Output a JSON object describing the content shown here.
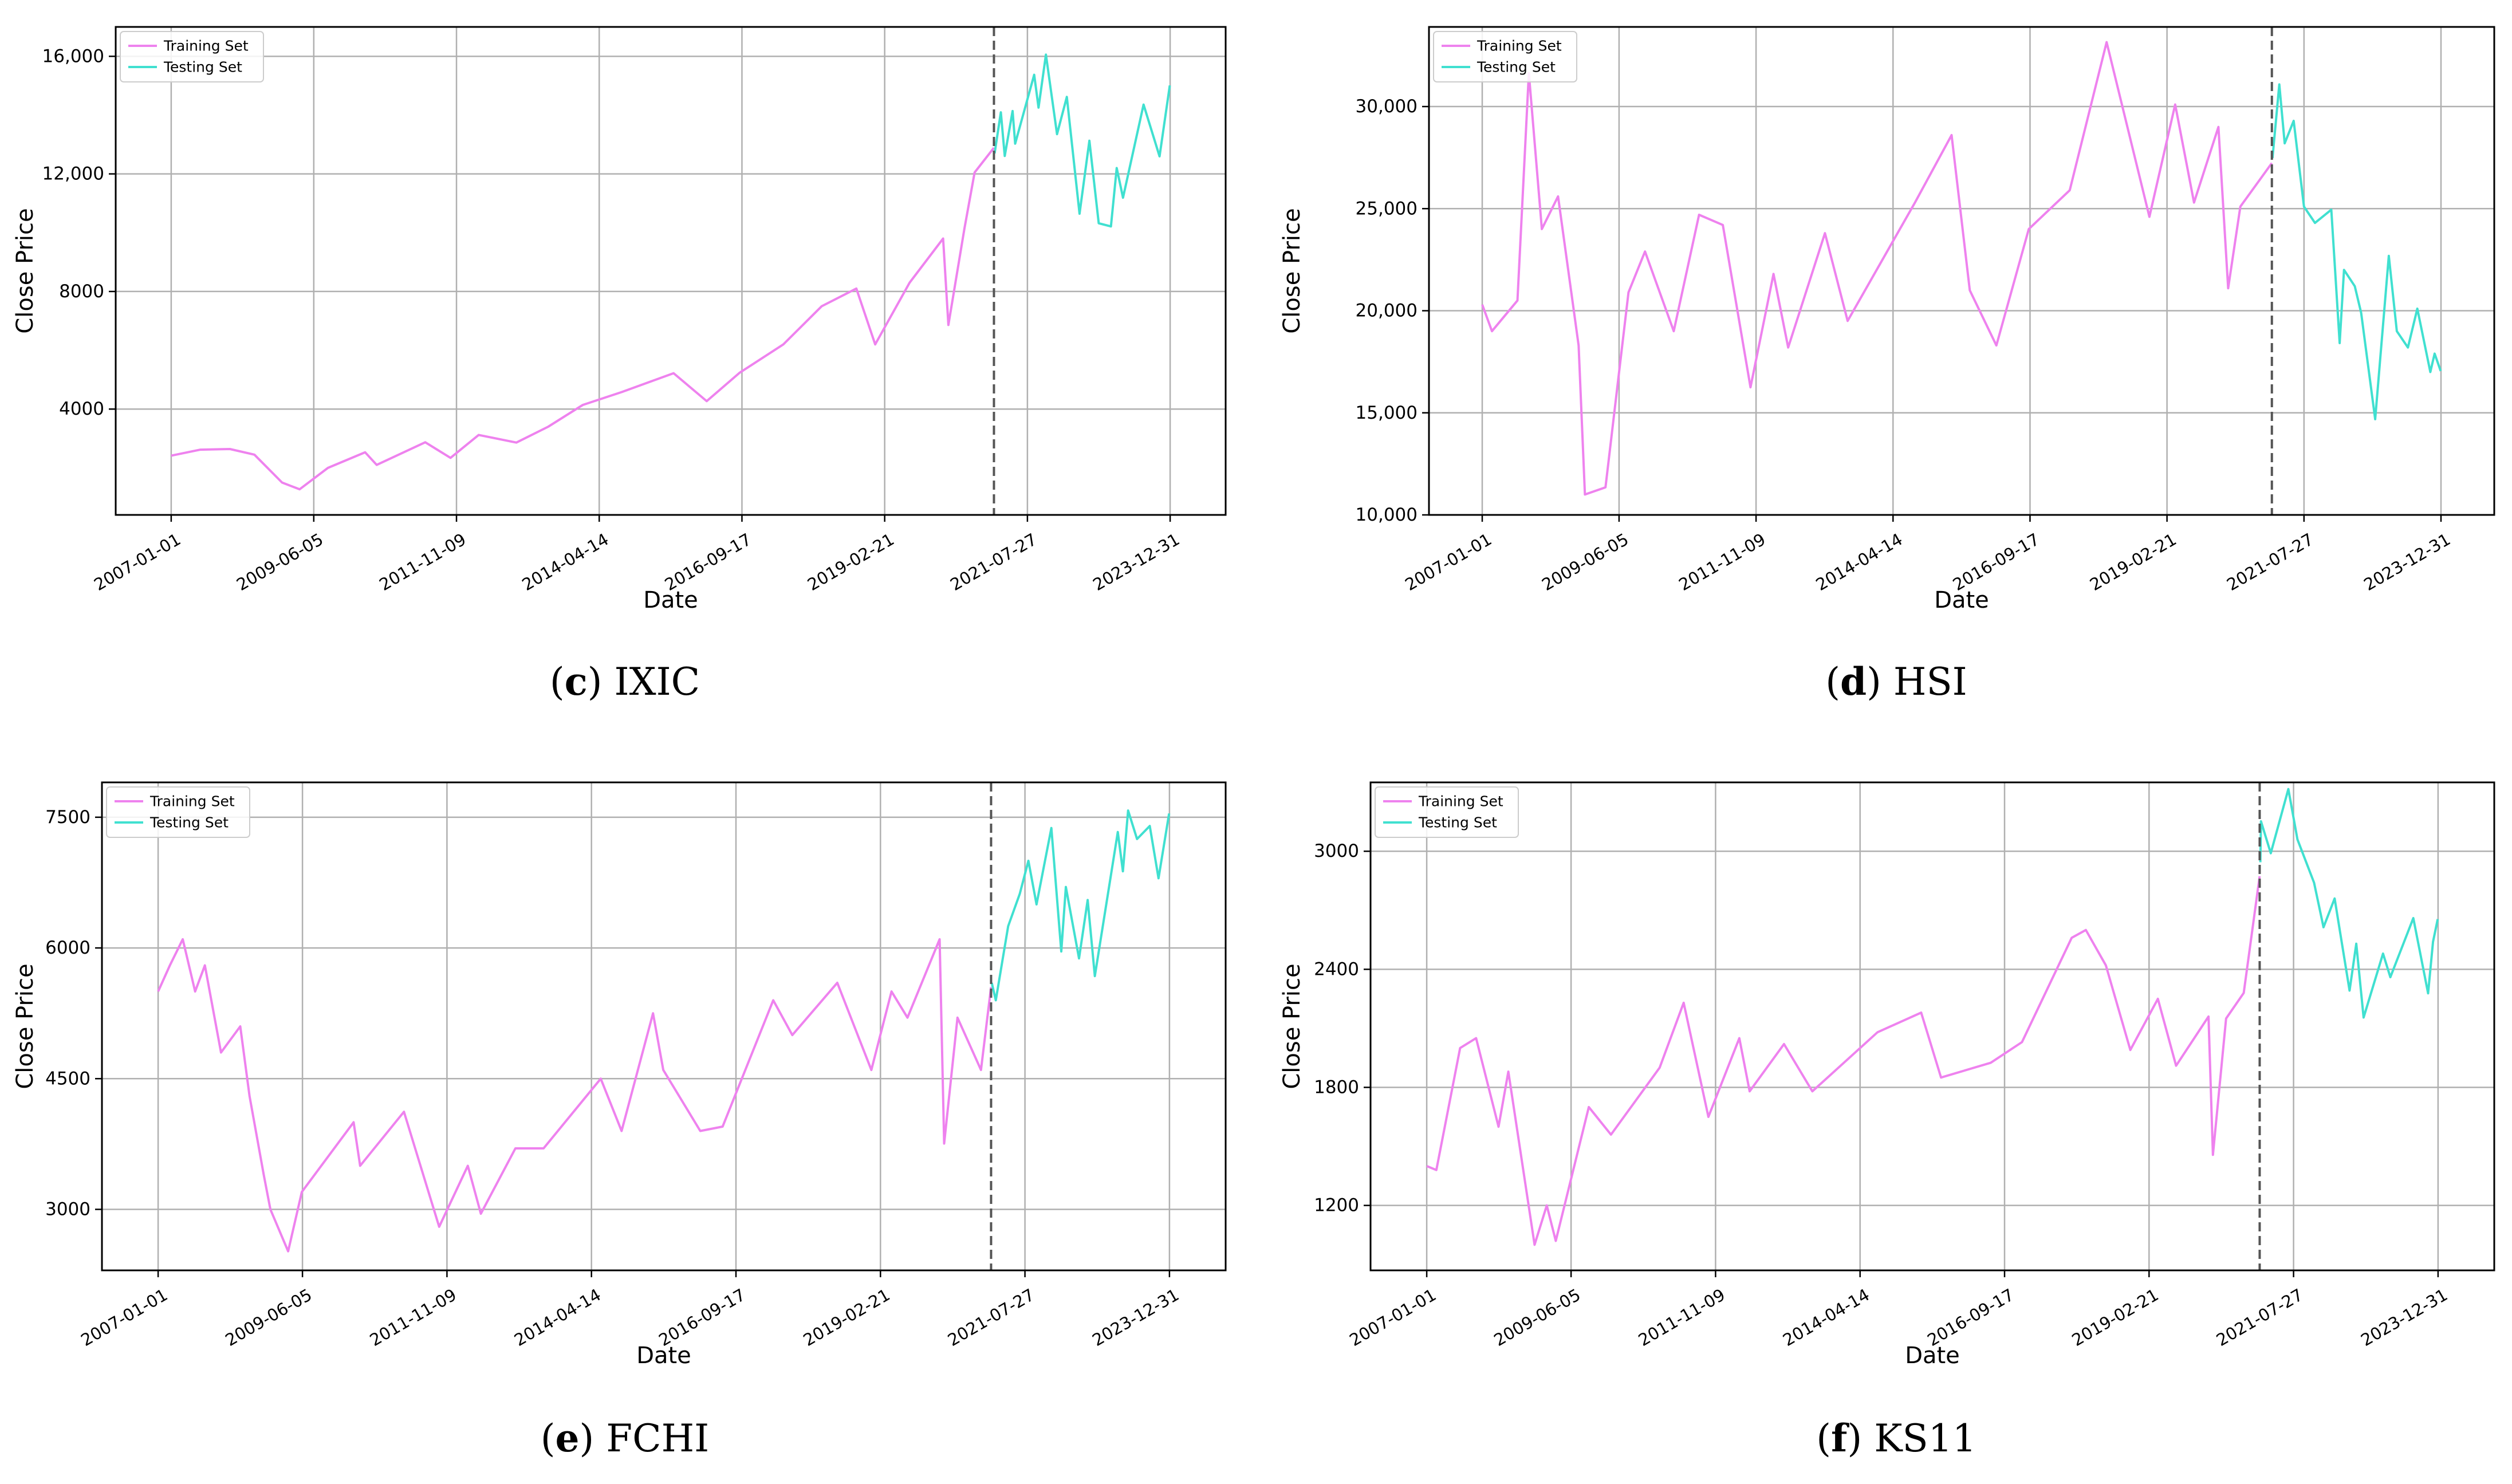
{
  "colors": {
    "training": "#ee82ee",
    "testing": "#40e0d0",
    "grid": "#b0b0b0",
    "axis": "#000000",
    "split_line": "#555555"
  },
  "x_ticks": [
    "2007-01-01",
    "2009-06-05",
    "2011-11-09",
    "2014-04-14",
    "2016-09-17",
    "2019-02-21",
    "2021-07-27",
    "2023-12-31"
  ],
  "x_range": [
    "2007-01-01",
    "2023-12-31"
  ],
  "split_date": "2020-12-31",
  "xlabel": "Date",
  "ylabel": "Close Price",
  "legend": {
    "training": "Training Set",
    "testing": "Testing Set",
    "position": "upper-left"
  },
  "chart_data": [
    {
      "type": "line",
      "caption_letter": "c",
      "caption_name": "IXIC",
      "xlabel": "Date",
      "ylabel": "Close Price",
      "ylim": [
        400,
        17000
      ],
      "y_ticks": [
        4000,
        8000,
        12000,
        16000
      ],
      "y_tick_labels": [
        "4000",
        "8000",
        "12,000",
        "16,000"
      ],
      "grid": true,
      "legend_position": "top-left",
      "series": [
        {
          "name": "Training Set",
          "x": [
            "2007-01-01",
            "2007-07-01",
            "2008-01-01",
            "2008-06-01",
            "2008-11-20",
            "2009-03-09",
            "2009-09-01",
            "2010-04-20",
            "2010-07-01",
            "2011-04-29",
            "2011-10-03",
            "2012-03-26",
            "2012-11-15",
            "2013-06-01",
            "2014-01-02",
            "2014-09-01",
            "2015-07-20",
            "2016-02-11",
            "2016-09-01",
            "2017-06-01",
            "2018-01-26",
            "2018-08-29",
            "2018-12-24",
            "2019-07-26",
            "2020-02-19",
            "2020-03-23",
            "2020-07-01",
            "2020-09-02",
            "2020-12-31"
          ],
          "y": [
            2415,
            2620,
            2640,
            2450,
            1500,
            1270,
            2000,
            2530,
            2100,
            2870,
            2340,
            3120,
            2860,
            3400,
            4140,
            4580,
            5220,
            4270,
            5230,
            6200,
            7500,
            8100,
            6200,
            8300,
            9800,
            6860,
            10150,
            12050,
            12888
          ]
        },
        {
          "name": "Testing Set",
          "x": [
            "2021-01-04",
            "2021-02-12",
            "2021-03-08",
            "2021-04-26",
            "2021-05-12",
            "2021-09-07",
            "2021-10-04",
            "2021-11-19",
            "2022-01-27",
            "2022-03-29",
            "2022-06-16",
            "2022-08-16",
            "2022-10-13",
            "2022-12-28",
            "2023-02-02",
            "2023-03-13",
            "2023-07-19",
            "2023-10-26",
            "2023-12-29"
          ],
          "y": [
            12698,
            14095,
            12610,
            14138,
            13030,
            15374,
            14255,
            16057,
            13352,
            14620,
            10646,
            13128,
            10321,
            10214,
            12200,
            11190,
            14358,
            12596,
            15011
          ]
        }
      ]
    },
    {
      "type": "line",
      "caption_letter": "d",
      "caption_name": "HSI",
      "xlabel": "Date",
      "ylabel": "Close Price",
      "ylim": [
        10000,
        33900
      ],
      "y_ticks": [
        10000,
        15000,
        20000,
        25000,
        30000
      ],
      "y_tick_labels": [
        "10,000",
        "15,000",
        "20,000",
        "25,000",
        "30,000"
      ],
      "grid": true,
      "legend_position": "top-left",
      "series": [
        {
          "name": "Training Set",
          "x": [
            "2007-01-01",
            "2007-03-05",
            "2007-08-17",
            "2007-10-30",
            "2008-01-22",
            "2008-05-06",
            "2008-09-16",
            "2008-10-27",
            "2009-03-09",
            "2009-08-05",
            "2009-11-20",
            "2010-05-25",
            "2010-11-05",
            "2011-04-08",
            "2011-10-04",
            "2012-03-01",
            "2012-06-04",
            "2013-01-28",
            "2013-06-24",
            "2014-09-03",
            "2015-04-28",
            "2015-08-24",
            "2016-02-12",
            "2016-09-09",
            "2017-06-01",
            "2018-01-26",
            "2018-10-30",
            "2019-04-15",
            "2019-08-15",
            "2020-01-20",
            "2020-03-23",
            "2020-06-10",
            "2020-12-31"
          ],
          "y": [
            20300,
            19000,
            20500,
            31638,
            24000,
            25600,
            18300,
            11000,
            11350,
            20900,
            22900,
            19000,
            24700,
            24200,
            16250,
            21800,
            18200,
            23800,
            19500,
            25300,
            28600,
            21000,
            18300,
            24000,
            25900,
            33154,
            24600,
            30100,
            25300,
            29000,
            21100,
            25100,
            27231
          ]
        },
        {
          "name": "Testing Set",
          "x": [
            "2021-01-04",
            "2021-02-17",
            "2021-03-24",
            "2021-05-21",
            "2021-07-27",
            "2021-10-06",
            "2022-01-20",
            "2022-03-15",
            "2022-04-12",
            "2022-06-21",
            "2022-08-01",
            "2022-10-31",
            "2023-01-27",
            "2023-03-20",
            "2023-05-31",
            "2023-07-31",
            "2023-10-23",
            "2023-11-20",
            "2023-12-29"
          ],
          "y": [
            27473,
            31084,
            28200,
            29300,
            25100,
            24300,
            24950,
            18415,
            22000,
            21200,
            19900,
            14687,
            22689,
            19000,
            18200,
            20100,
            17000,
            17900,
            17047
          ]
        }
      ]
    },
    {
      "type": "line",
      "caption_letter": "e",
      "caption_name": "FCHI",
      "xlabel": "Date",
      "ylabel": "Close Price",
      "ylim": [
        2300,
        7900
      ],
      "y_ticks": [
        3000,
        4500,
        6000,
        7500
      ],
      "y_tick_labels": [
        "3000",
        "4500",
        "6000",
        "7500"
      ],
      "grid": true,
      "legend_position": "top-left",
      "series": [
        {
          "name": "Training Set",
          "x": [
            "2007-01-01",
            "2007-03-14",
            "2007-06-01",
            "2007-08-16",
            "2007-10-15",
            "2008-01-22",
            "2008-05-19",
            "2008-07-15",
            "2008-10-10",
            "2008-11-20",
            "2009-03-09",
            "2009-06-01",
            "2010-04-15",
            "2010-05-25",
            "2011-02-18",
            "2011-09-22",
            "2012-03-16",
            "2012-06-04",
            "2013-01-02",
            "2013-06-24",
            "2014-06-10",
            "2014-10-16",
            "2015-04-27",
            "2015-06-29",
            "2016-02-11",
            "2016-06-27",
            "2017-05-04",
            "2017-08-29",
            "2018-06-01",
            "2018-12-27",
            "2019-04-30",
            "2019-08-06",
            "2020-02-19",
            "2020-03-18",
            "2020-06-08",
            "2020-10-30",
            "2020-12-31"
          ],
          "y": [
            5500,
            5800,
            6100,
            5500,
            5800,
            4800,
            5100,
            4300,
            3400,
            3000,
            2519,
            3200,
            4000,
            3500,
            4120,
            2800,
            3500,
            2950,
            3700,
            3700,
            4500,
            3900,
            5250,
            4600,
            3900,
            3950,
            5400,
            5000,
            5600,
            4600,
            5500,
            5200,
            6100,
            3755,
            5200,
            4600,
            5551
          ]
        },
        {
          "name": "Testing Set",
          "x": [
            "2021-01-04",
            "2021-01-29",
            "2021-04-15",
            "2021-06-25",
            "2021-08-17",
            "2021-10-06",
            "2022-01-05",
            "2022-03-07",
            "2022-04-04",
            "2022-06-24",
            "2022-08-16",
            "2022-09-29",
            "2023-02-17",
            "2023-03-20",
            "2023-04-21",
            "2023-06-15",
            "2023-09-01",
            "2023-10-25",
            "2023-12-29"
          ],
          "y": [
            5600,
            5400,
            6250,
            6620,
            7000,
            6500,
            7376,
            5960,
            6700,
            5880,
            6550,
            5677,
            7330,
            6880,
            7577,
            7250,
            7400,
            6800,
            7543
          ]
        }
      ]
    },
    {
      "type": "line",
      "caption_letter": "f",
      "caption_name": "KS11",
      "xlabel": "Date",
      "ylabel": "Close Price",
      "ylim": [
        870,
        3350
      ],
      "y_ticks": [
        1200,
        1800,
        2400,
        3000
      ],
      "y_tick_labels": [
        "1200",
        "1800",
        "2400",
        "3000"
      ],
      "grid": true,
      "legend_position": "top-left",
      "series": [
        {
          "name": "Training Set",
          "x": [
            "2007-01-01",
            "2007-03-01",
            "2007-07-25",
            "2007-10-31",
            "2008-03-17",
            "2008-05-16",
            "2008-10-24",
            "2009-01-07",
            "2009-03-03",
            "2009-09-22",
            "2010-02-05",
            "2010-12-01",
            "2011-04-27",
            "2011-09-26",
            "2012-04-03",
            "2012-06-05",
            "2013-01-02",
            "2013-06-25",
            "2014-07-30",
            "2015-04-24",
            "2015-08-24",
            "2016-06-24",
            "2017-01-02",
            "2017-11-03",
            "2018-01-29",
            "2018-06-01",
            "2018-10-29",
            "2019-04-16",
            "2019-08-06",
            "2020-02-21",
            "2020-03-19",
            "2020-06-08",
            "2020-09-24",
            "2020-12-31"
          ],
          "y": [
            1400,
            1380,
            2000,
            2050,
            1600,
            1880,
            1000,
            1200,
            1020,
            1700,
            1560,
            1900,
            2230,
            1650,
            2050,
            1780,
            2020,
            1780,
            2080,
            2180,
            1850,
            1925,
            2030,
            2560,
            2600,
            2420,
            1990,
            2250,
            1910,
            2160,
            1457,
            2150,
            2280,
            2873
          ]
        },
        {
          "name": "Testing Set",
          "x": [
            "2021-01-04",
            "2021-01-08",
            "2021-03-09",
            "2021-06-25",
            "2021-08-20",
            "2021-11-30",
            "2022-01-27",
            "2022-04-05",
            "2022-07-06",
            "2022-08-16",
            "2022-09-30",
            "2023-01-27",
            "2023-03-13",
            "2023-08-01",
            "2023-10-31",
            "2023-11-30",
            "2023-12-29"
          ],
          "y": [
            2944,
            3152,
            2990,
            3316,
            3060,
            2840,
            2614,
            2760,
            2292,
            2530,
            2155,
            2480,
            2360,
            2660,
            2278,
            2540,
            2655
          ]
        }
      ]
    }
  ]
}
